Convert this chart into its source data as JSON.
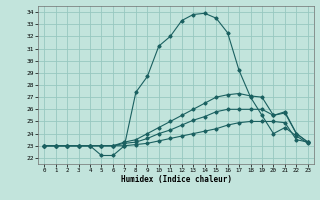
{
  "xlabel": "Humidex (Indice chaleur)",
  "xlim": [
    -0.5,
    23.5
  ],
  "ylim": [
    21.5,
    34.5
  ],
  "xticks": [
    0,
    1,
    2,
    3,
    4,
    5,
    6,
    7,
    8,
    9,
    10,
    11,
    12,
    13,
    14,
    15,
    16,
    17,
    18,
    19,
    20,
    21,
    22,
    23
  ],
  "yticks": [
    22,
    23,
    24,
    25,
    26,
    27,
    28,
    29,
    30,
    31,
    32,
    33,
    34
  ],
  "background_color": "#c2e4dc",
  "grid_color": "#98c8c0",
  "line_color": "#1a6060",
  "lines": [
    {
      "x": [
        0,
        1,
        2,
        3,
        4,
        5,
        6,
        7,
        8,
        9,
        10,
        11,
        12,
        13,
        14,
        15,
        16,
        17,
        18,
        19,
        20,
        21,
        22,
        23
      ],
      "y": [
        23,
        23,
        23,
        23,
        23,
        22.2,
        22.2,
        23.0,
        27.4,
        28.7,
        31.2,
        32.0,
        33.3,
        33.8,
        33.9,
        33.5,
        32.3,
        29.2,
        27.0,
        25.5,
        24.0,
        24.5,
        23.8,
        23.2
      ]
    },
    {
      "x": [
        0,
        1,
        2,
        3,
        4,
        5,
        6,
        7,
        8,
        9,
        10,
        11,
        12,
        13,
        14,
        15,
        16,
        17,
        18,
        19,
        20,
        21,
        22,
        23
      ],
      "y": [
        23,
        23,
        23,
        23,
        23,
        23,
        23,
        23.3,
        23.5,
        24.0,
        24.5,
        25.0,
        25.5,
        26.0,
        26.5,
        27.0,
        27.2,
        27.3,
        27.1,
        27.0,
        25.5,
        25.8,
        24.0,
        23.3
      ]
    },
    {
      "x": [
        0,
        1,
        2,
        3,
        4,
        5,
        6,
        7,
        8,
        9,
        10,
        11,
        12,
        13,
        14,
        15,
        16,
        17,
        18,
        19,
        20,
        21,
        22,
        23
      ],
      "y": [
        23,
        23,
        23,
        23,
        23,
        23,
        23,
        23.2,
        23.3,
        23.6,
        24.0,
        24.3,
        24.7,
        25.1,
        25.4,
        25.8,
        26.0,
        26.0,
        26.0,
        26.0,
        25.5,
        25.7,
        24.0,
        23.3
      ]
    },
    {
      "x": [
        0,
        1,
        2,
        3,
        4,
        5,
        6,
        7,
        8,
        9,
        10,
        11,
        12,
        13,
        14,
        15,
        16,
        17,
        18,
        19,
        20,
        21,
        22,
        23
      ],
      "y": [
        23,
        23,
        23,
        23,
        23,
        23,
        23,
        23.0,
        23.1,
        23.2,
        23.4,
        23.6,
        23.8,
        24.0,
        24.2,
        24.4,
        24.7,
        24.9,
        25.0,
        25.0,
        25.0,
        24.9,
        23.5,
        23.3
      ]
    }
  ]
}
